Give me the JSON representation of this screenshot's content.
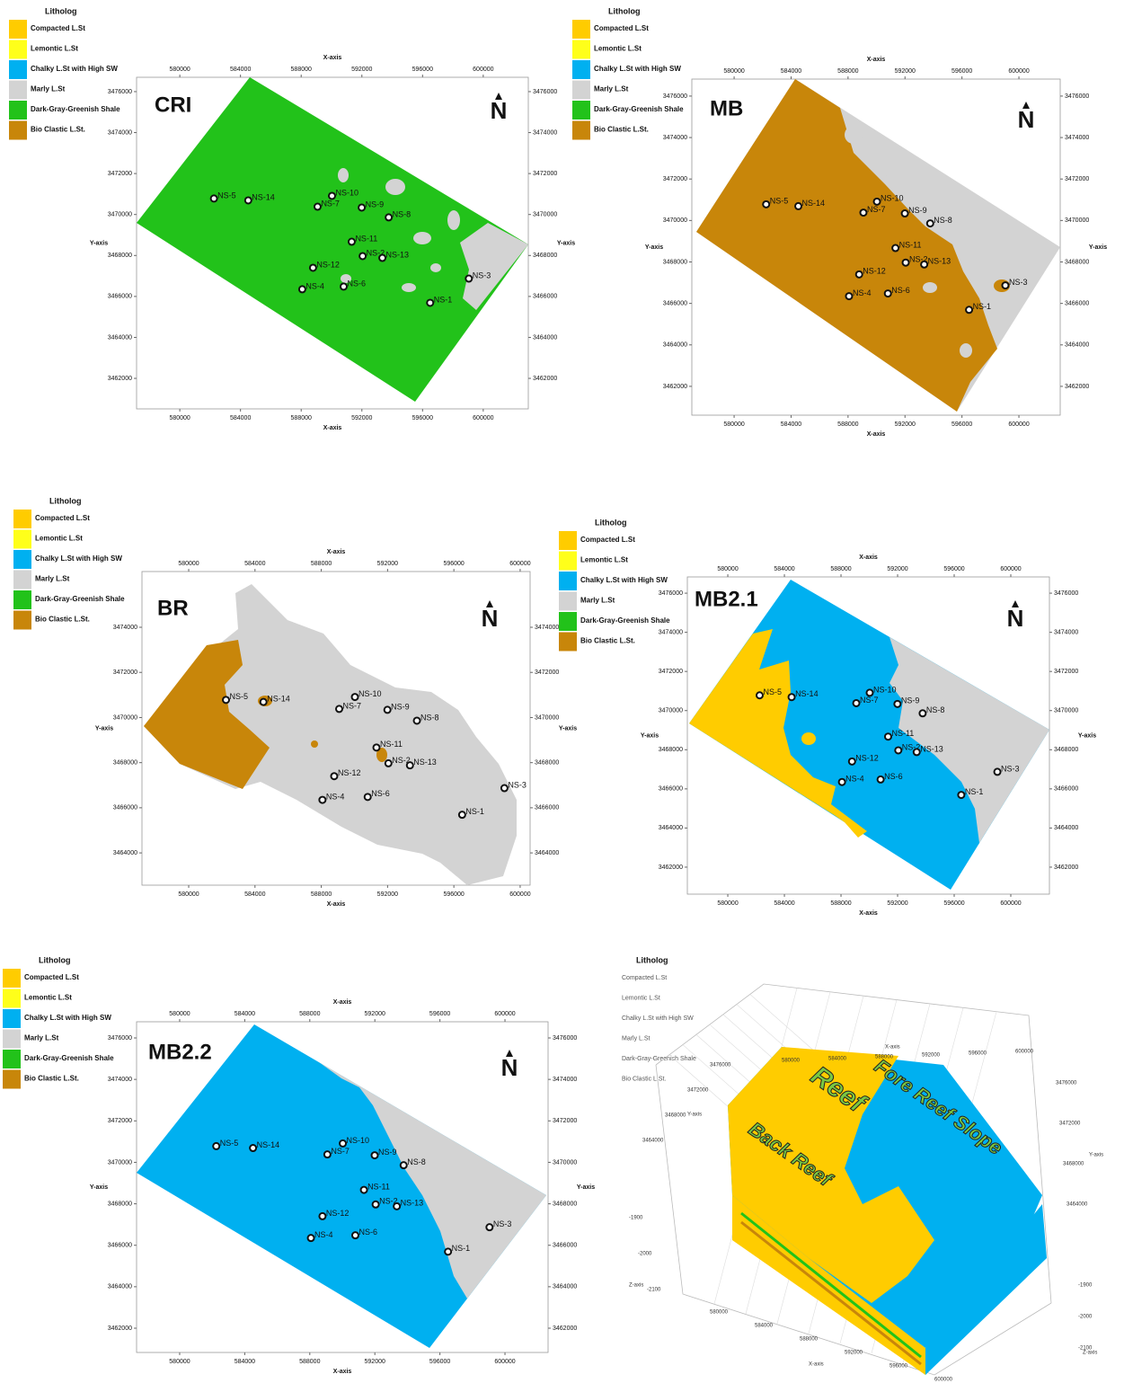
{
  "legend": {
    "title": "Litholog",
    "items": [
      {
        "name": "Compacted L.St",
        "color": "#ffcc00"
      },
      {
        "name": "Lemontic L.St",
        "color": "#ffff1a"
      },
      {
        "name": "Chalky L.St with High SW",
        "color": "#00b0f0"
      },
      {
        "name": "Marly L.St",
        "color": "#d3d3d3"
      },
      {
        "name": "Dark-Gray-Greenish Shale",
        "color": "#22c21a"
      },
      {
        "name": "Bio Clastic L.St.",
        "color": "#c8860a"
      }
    ]
  },
  "north": "N",
  "x_axis_label": "X-axis",
  "y_axis_label": "Y-axis",
  "wells": [
    {
      "name": "NS-5",
      "x": 582250,
      "y": 3470780
    },
    {
      "name": "NS-14",
      "x": 584510,
      "y": 3470690
    },
    {
      "name": "NS-10",
      "x": 590030,
      "y": 3470910
    },
    {
      "name": "NS-7",
      "x": 589080,
      "y": 3470380
    },
    {
      "name": "NS-9",
      "x": 591990,
      "y": 3470340
    },
    {
      "name": "NS-8",
      "x": 593770,
      "y": 3469860
    },
    {
      "name": "NS-11",
      "x": 591330,
      "y": 3468670
    },
    {
      "name": "NS-2",
      "x": 592050,
      "y": 3467970
    },
    {
      "name": "NS-13",
      "x": 593350,
      "y": 3467880
    },
    {
      "name": "NS-12",
      "x": 588780,
      "y": 3467400
    },
    {
      "name": "NS-4",
      "x": 588070,
      "y": 3466350
    },
    {
      "name": "NS-6",
      "x": 590800,
      "y": 3466480
    },
    {
      "name": "NS-1",
      "x": 596500,
      "y": 3465690
    },
    {
      "name": "NS-3",
      "x": 599050,
      "y": 3466870
    }
  ],
  "panels": [
    {
      "title": "CRI",
      "xlim": [
        577150,
        602970
      ],
      "ylim": [
        3460510,
        3476700
      ],
      "xticks": [
        580000,
        584000,
        588000,
        592000,
        596000,
        600000
      ],
      "yticks": [
        3462000,
        3464000,
        3466000,
        3468000,
        3470000,
        3472000,
        3474000,
        3476000
      ]
    },
    {
      "title": "MB",
      "xlim": [
        577030,
        602900
      ],
      "ylim": [
        3460610,
        3476820
      ],
      "xticks": [
        580000,
        584000,
        588000,
        592000,
        596000,
        600000
      ],
      "yticks": [
        3462000,
        3464000,
        3466000,
        3468000,
        3470000,
        3472000,
        3474000,
        3476000
      ]
    },
    {
      "title": "BR",
      "xlim": [
        577180,
        600600
      ],
      "ylim": [
        3462570,
        3476470
      ],
      "xticks": [
        580000,
        584000,
        588000,
        592000,
        596000,
        600000
      ],
      "yticks": [
        3464000,
        3466000,
        3468000,
        3470000,
        3472000,
        3474000
      ]
    },
    {
      "title": "MB2.1",
      "xlim": [
        577140,
        602730
      ],
      "ylim": [
        3460620,
        3476830
      ],
      "xticks": [
        580000,
        584000,
        588000,
        592000,
        596000,
        600000
      ],
      "yticks": [
        3462000,
        3464000,
        3466000,
        3468000,
        3470000,
        3472000,
        3474000,
        3476000
      ]
    },
    {
      "title": "MB2.2",
      "xlim": [
        577350,
        602650
      ],
      "ylim": [
        3460830,
        3476780
      ],
      "xticks": [
        580000,
        584000,
        588000,
        592000,
        596000,
        600000
      ],
      "yticks": [
        3462000,
        3464000,
        3466000,
        3468000,
        3470000,
        3472000,
        3474000,
        3476000
      ]
    }
  ],
  "block_3d": {
    "back_reef": "Back Reef",
    "reef": "Reef",
    "fore_reef_slope": "Fore Reef Slope",
    "z_axis_label": "Z-axis",
    "xticks": [
      580000,
      584000,
      588000,
      592000,
      596000,
      600000
    ],
    "yticks": [
      3476000,
      3472000,
      3468000,
      3464000
    ],
    "zticks": [
      -1900,
      -2000,
      -2100
    ]
  }
}
